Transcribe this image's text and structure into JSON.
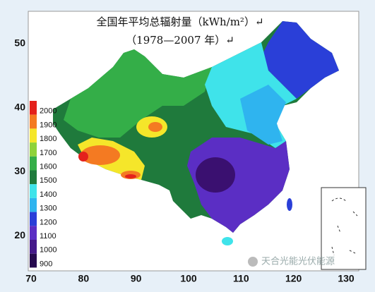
{
  "title": {
    "line1": "全国年平均总辐射量（kWh/m²）↵",
    "line2": "（1978—2007 年）↵"
  },
  "axes": {
    "y_ticks": [
      50,
      40,
      30,
      20
    ],
    "x_ticks": [
      70,
      80,
      90,
      100,
      110,
      120,
      130
    ]
  },
  "legend": [
    {
      "label": "2000",
      "color": "#e4211c"
    },
    {
      "label": "1900",
      "color": "#f47a22"
    },
    {
      "label": "1800",
      "color": "#f5e62a"
    },
    {
      "label": "1700",
      "color": "#8fd23a"
    },
    {
      "label": "1600",
      "color": "#34ae48"
    },
    {
      "label": "1500",
      "color": "#1f7a3c"
    },
    {
      "label": "1400",
      "color": "#3fe3ea"
    },
    {
      "label": "1300",
      "color": "#2fb4ef"
    },
    {
      "label": "1200",
      "color": "#2a3fd8"
    },
    {
      "label": "1100",
      "color": "#5b2ec4"
    },
    {
      "label": "1000",
      "color": "#45198a"
    },
    {
      "label": "900",
      "color": "#260a4f"
    }
  ],
  "watermark": "天合光能光伏能源"
}
